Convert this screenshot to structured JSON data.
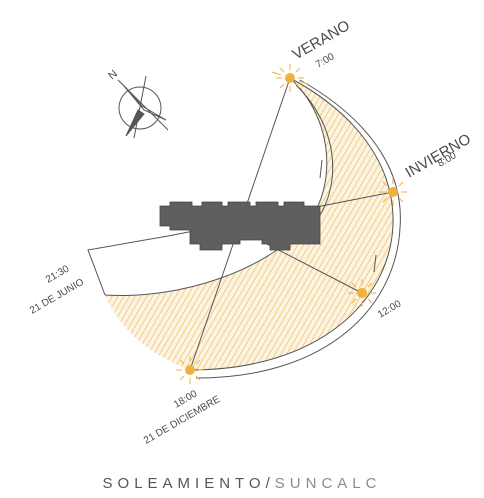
{
  "labels": {
    "verano": "VERANO",
    "verano_time": "7:00",
    "invierno": "INVIERNO",
    "invierno_time": "8:00",
    "noon_time": "12:00",
    "summer_evening_time": "21:30",
    "summer_evening_date": "21 DE JUNIO",
    "winter_evening_time": "18:00",
    "winter_evening_date": "21 DE DICIEMBRE",
    "compass_letter": "N"
  },
  "footer": {
    "main": "SOLEAMIENTO",
    "separator": "/",
    "sub": "SUNCALC"
  },
  "colors": {
    "sun": "#f0b23c",
    "hatch": "#e8b04a",
    "fill_light": "#fbf0d8",
    "building": "#5f5f5f",
    "stroke": "#555555"
  }
}
